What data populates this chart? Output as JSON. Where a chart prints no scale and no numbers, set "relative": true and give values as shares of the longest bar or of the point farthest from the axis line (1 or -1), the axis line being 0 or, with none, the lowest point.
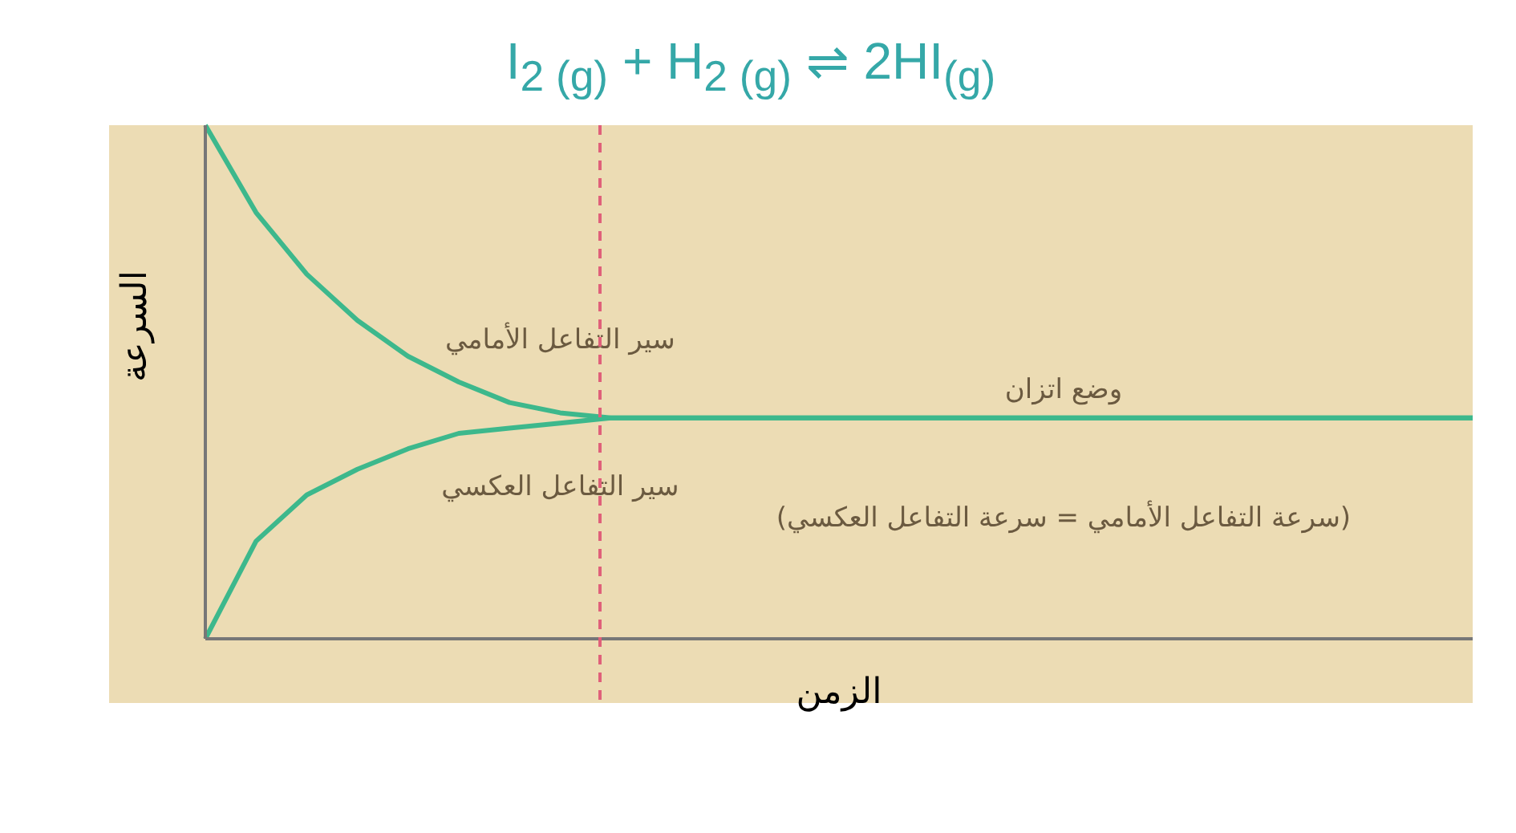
{
  "chart_data": {
    "type": "line",
    "relative": true,
    "title": "I$_{2 (g)}$ + H$_{2 (g)}$ ⇌ 2HI$_{(g)}$",
    "xlabel": "الزمن",
    "ylabel": "السرعة",
    "categories": [
      null,
      null,
      null,
      null,
      null,
      null,
      null,
      null,
      null,
      null,
      null,
      null,
      null,
      null,
      null,
      null,
      null,
      null,
      null,
      null,
      null,
      null,
      null,
      null,
      null,
      null
    ],
    "series": [
      {
        "name": "سير التفاعل الأمامي",
        "color": "#3db88c",
        "values": [
          1.0,
          0.83,
          0.71,
          0.62,
          0.55,
          0.5,
          0.46,
          0.44,
          0.43,
          0.43,
          0.43,
          0.43,
          0.43,
          0.43,
          0.43,
          0.43,
          0.43,
          0.43,
          0.43,
          0.43,
          0.43,
          0.43,
          0.43,
          0.43,
          0.43,
          0.43
        ]
      },
      {
        "name": "سير التفاعل العكسي",
        "color": "#3db88c",
        "values": [
          0,
          0.19,
          0.28,
          0.33,
          0.37,
          0.4,
          0.41,
          0.42,
          0.43,
          0.43,
          0.43,
          0.43,
          0.43,
          0.43,
          0.43,
          0.43,
          0.43,
          0.43,
          0.43,
          0.43,
          0.43,
          0.43,
          0.43,
          0.43,
          0.43,
          0.43
        ]
      }
    ],
    "annotations": [
      "وضع اتزان",
      "(سرعة التفاعل الأمامي = سرعة التفاعل العكسي)"
    ],
    "grid": false,
    "legend": false,
    "marker": "none",
    "line_style": "solid"
  }
}
